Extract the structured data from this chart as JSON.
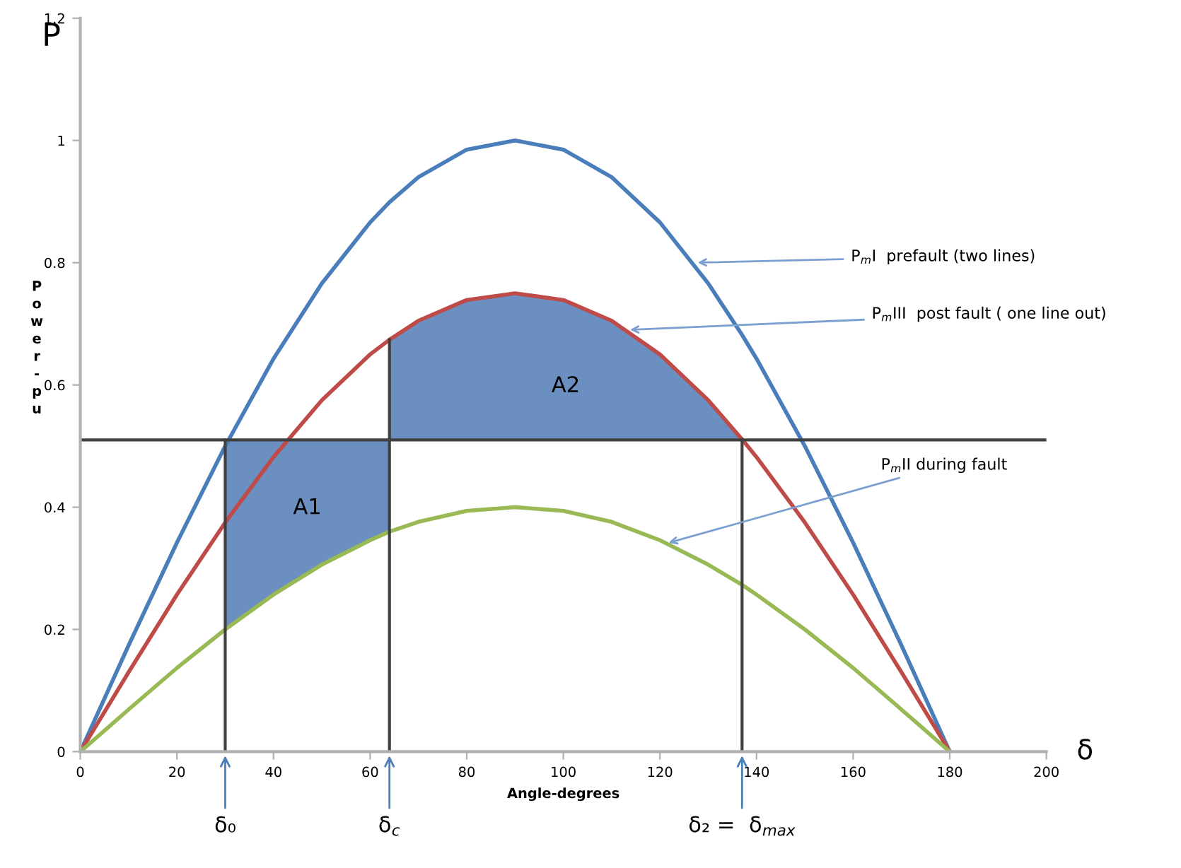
{
  "chart_data": {
    "type": "line",
    "xlabel": "Angle-degrees",
    "ylabel": "Power - pu",
    "x": [
      0,
      10,
      20,
      30,
      40,
      50,
      60,
      64,
      70,
      80,
      90,
      100,
      110,
      120,
      130,
      137,
      140,
      150,
      160,
      170,
      180
    ],
    "series": [
      {
        "color": "#4a7ebb",
        "values": [
          0,
          0.174,
          0.342,
          0.5,
          0.643,
          0.766,
          0.866,
          0.899,
          0.94,
          0.985,
          1,
          0.985,
          0.94,
          0.866,
          0.766,
          0.682,
          0.643,
          0.5,
          0.342,
          0.174,
          0
        ]
      },
      {
        "color": "#be4b48",
        "values": [
          0,
          0.13,
          0.257,
          0.375,
          0.482,
          0.575,
          0.65,
          0.674,
          0.705,
          0.739,
          0.75,
          0.739,
          0.705,
          0.65,
          0.575,
          0.511,
          0.482,
          0.375,
          0.257,
          0.13,
          0
        ]
      },
      {
        "color": "#98b954",
        "values": [
          0,
          0.069,
          0.137,
          0.2,
          0.257,
          0.306,
          0.346,
          0.36,
          0.376,
          0.394,
          0.4,
          0.394,
          0.376,
          0.346,
          0.306,
          0.273,
          0.257,
          0.2,
          0.137,
          0.069,
          0
        ]
      }
    ],
    "xlim": [
      0,
      200
    ],
    "xticks": [
      0,
      20,
      40,
      60,
      80,
      100,
      120,
      140,
      160,
      180,
      200
    ],
    "ylim": [
      0,
      1.2
    ],
    "yticks": [
      0,
      0.2,
      0.4,
      0.6,
      0.8,
      1,
      1.2
    ],
    "marker": "none",
    "line_style": "solid",
    "grid": false,
    "ref_lines": [
      {
        "axis": "y",
        "value": 0.51,
        "color": "#404040"
      },
      {
        "axis": "x",
        "value": 30,
        "label": "δ₀",
        "color": "#404040"
      },
      {
        "axis": "x",
        "value": 64,
        "label": "δ$_{c}$",
        "color": "#404040"
      },
      {
        "axis": "x",
        "value": 137,
        "label": "δ₂ =  δ$_{max}$",
        "color": "#404040"
      }
    ],
    "annotations": [
      "P",
      "δ",
      "A1",
      "A2",
      {
        "text": "P$_{m}$I  prefault (two lines)",
        "x": 127,
        "y": 0.8
      },
      {
        "text": "P$_{m}$III  post fault ( one line out)",
        "x": 113,
        "y": 0.69
      },
      {
        "text": "P$_{m}$II during fault",
        "x": 121,
        "y": 0.34
      }
    ]
  }
}
